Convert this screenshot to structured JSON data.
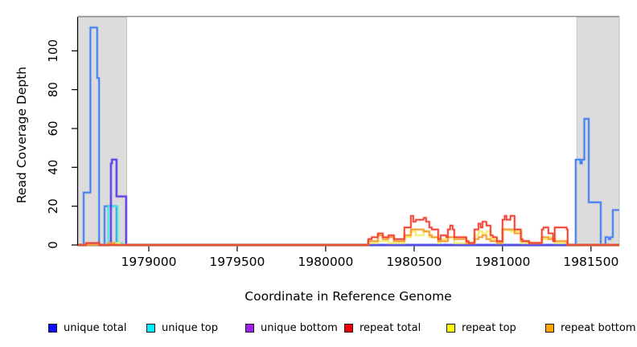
{
  "axes": {
    "x": {
      "label": "Coordinate in Reference Genome",
      "min": 1978600,
      "max": 1981660,
      "ticks": [
        1979000,
        1979500,
        1980000,
        1980500,
        1981000,
        1981500
      ]
    },
    "y": {
      "label": "Read Coverage Depth",
      "min": 0,
      "max": 117.5,
      "ticks": [
        0,
        20,
        40,
        60,
        80,
        100
      ]
    }
  },
  "legend": [
    {
      "label": "unique total",
      "swatch": "#0f0fff"
    },
    {
      "label": "unique top",
      "swatch": "#00f0ff"
    },
    {
      "label": "unique bottom",
      "swatch": "#a020f0"
    },
    {
      "label": "repeat total",
      "swatch": "#f00000"
    },
    {
      "label": "repeat top",
      "swatch": "#ffff00"
    },
    {
      "label": "repeat bottom",
      "swatch": "#ffa500"
    }
  ],
  "style_colors": {
    "shaded_region_fill": "#dcdcdc",
    "shaded_region_border": "#c4c4c4",
    "plot_top_line": "#8f8f8f",
    "axis": "#000000"
  },
  "chart_data": {
    "type": "line",
    "subtype": "step-coverage",
    "title": "",
    "xlabel": "Coordinate in Reference Genome",
    "ylabel": "Read Coverage Depth",
    "xlim": [
      1978600,
      1981660
    ],
    "ylim": [
      0,
      117.5
    ],
    "grid": false,
    "legend_position": "bottom",
    "shaded_regions": [
      {
        "from": 1978600,
        "to": 1978875
      },
      {
        "from": 1981420,
        "to": 1981660
      }
    ],
    "series": [
      {
        "name": "unique total",
        "color": "#3d79f2",
        "halo_opacity": 0.28,
        "points": [
          [
            1978600,
            0
          ],
          [
            1978632,
            27
          ],
          [
            1978670,
            112
          ],
          [
            1978708,
            86
          ],
          [
            1978719,
            0
          ],
          [
            1978750,
            20
          ],
          [
            1978818,
            0
          ],
          [
            1981413,
            44
          ],
          [
            1981440,
            42
          ],
          [
            1981448,
            44
          ],
          [
            1981462,
            65
          ],
          [
            1981487,
            22
          ],
          [
            1981555,
            0
          ],
          [
            1981582,
            4
          ],
          [
            1981600,
            3
          ],
          [
            1981610,
            4
          ],
          [
            1981623,
            18
          ]
        ]
      },
      {
        "name": "unique top",
        "color": "#3ce9e3",
        "halo_opacity": 0.3,
        "points": [
          [
            1978600,
            0
          ],
          [
            1978771,
            20
          ],
          [
            1978823,
            1
          ],
          [
            1978850,
            0
          ]
        ]
      },
      {
        "name": "unique bottom",
        "color": "#5b35e9",
        "halo_opacity": 0.38,
        "points": [
          [
            1978600,
            0
          ],
          [
            1978786,
            42
          ],
          [
            1978792,
            44
          ],
          [
            1978818,
            25
          ],
          [
            1978872,
            0
          ]
        ]
      },
      {
        "name": "repeat top",
        "color": "#f2ee67",
        "halo_opacity": 0.3,
        "points": [
          [
            1978600,
            0
          ],
          [
            1978805,
            1
          ],
          [
            1978836,
            0
          ],
          [
            1980241,
            1
          ],
          [
            1980295,
            2
          ],
          [
            1980355,
            1
          ],
          [
            1980445,
            4
          ],
          [
            1980482,
            7
          ],
          [
            1980509,
            5
          ],
          [
            1980554,
            7
          ],
          [
            1980586,
            4
          ],
          [
            1980636,
            1
          ],
          [
            1980650,
            3
          ],
          [
            1980691,
            4
          ],
          [
            1980727,
            1
          ],
          [
            1980841,
            5
          ],
          [
            1980864,
            7
          ],
          [
            1980886,
            6
          ],
          [
            1980909,
            7
          ],
          [
            1980932,
            3
          ],
          [
            1980968,
            1
          ],
          [
            1981000,
            8
          ],
          [
            1981045,
            7
          ],
          [
            1981104,
            1
          ],
          [
            1981222,
            3
          ],
          [
            1981259,
            4
          ],
          [
            1981295,
            1
          ],
          [
            1981368,
            0
          ]
        ]
      },
      {
        "name": "repeat bottom",
        "color": "#f49b2b",
        "halo_opacity": 0.3,
        "points": [
          [
            1978600,
            0
          ],
          [
            1978773,
            1
          ],
          [
            1978806,
            0
          ],
          [
            1980241,
            2
          ],
          [
            1980295,
            5
          ],
          [
            1980323,
            3
          ],
          [
            1980355,
            4
          ],
          [
            1980386,
            2
          ],
          [
            1980445,
            5
          ],
          [
            1980482,
            8
          ],
          [
            1980554,
            7
          ],
          [
            1980586,
            5
          ],
          [
            1980600,
            4
          ],
          [
            1980636,
            2
          ],
          [
            1980691,
            4
          ],
          [
            1980727,
            3
          ],
          [
            1980795,
            1
          ],
          [
            1980841,
            3
          ],
          [
            1980864,
            4
          ],
          [
            1980886,
            5
          ],
          [
            1980909,
            3
          ],
          [
            1980932,
            2
          ],
          [
            1980968,
            1
          ],
          [
            1981000,
            8
          ],
          [
            1981045,
            8
          ],
          [
            1981068,
            6
          ],
          [
            1981104,
            2
          ],
          [
            1981150,
            1
          ],
          [
            1981222,
            4
          ],
          [
            1981259,
            3
          ],
          [
            1981295,
            2
          ],
          [
            1981363,
            1
          ],
          [
            1981368,
            0
          ]
        ]
      },
      {
        "name": "repeat total",
        "color": "#f23a2c",
        "halo_opacity": 0.26,
        "points": [
          [
            1978600,
            0
          ],
          [
            1978645,
            1
          ],
          [
            1978720,
            0
          ],
          [
            1980241,
            3
          ],
          [
            1980260,
            4
          ],
          [
            1980295,
            6
          ],
          [
            1980323,
            4
          ],
          [
            1980355,
            5
          ],
          [
            1980386,
            3
          ],
          [
            1980445,
            9
          ],
          [
            1980482,
            15
          ],
          [
            1980495,
            12
          ],
          [
            1980509,
            13
          ],
          [
            1980554,
            14
          ],
          [
            1980568,
            12
          ],
          [
            1980586,
            9
          ],
          [
            1980600,
            8
          ],
          [
            1980636,
            3
          ],
          [
            1980650,
            5
          ],
          [
            1980682,
            4
          ],
          [
            1980691,
            8
          ],
          [
            1980704,
            10
          ],
          [
            1980718,
            8
          ],
          [
            1980727,
            4
          ],
          [
            1980795,
            2
          ],
          [
            1980809,
            1
          ],
          [
            1980841,
            8
          ],
          [
            1980864,
            11
          ],
          [
            1980876,
            9
          ],
          [
            1980886,
            12
          ],
          [
            1980909,
            10
          ],
          [
            1980932,
            5
          ],
          [
            1980945,
            4
          ],
          [
            1980968,
            2
          ],
          [
            1981000,
            13
          ],
          [
            1981012,
            15
          ],
          [
            1981022,
            13
          ],
          [
            1981045,
            15
          ],
          [
            1981068,
            8
          ],
          [
            1981104,
            3
          ],
          [
            1981113,
            2
          ],
          [
            1981150,
            1
          ],
          [
            1981222,
            8
          ],
          [
            1981231,
            9
          ],
          [
            1981259,
            6
          ],
          [
            1981286,
            2
          ],
          [
            1981295,
            9
          ],
          [
            1981363,
            8
          ],
          [
            1981368,
            0
          ]
        ]
      }
    ]
  }
}
